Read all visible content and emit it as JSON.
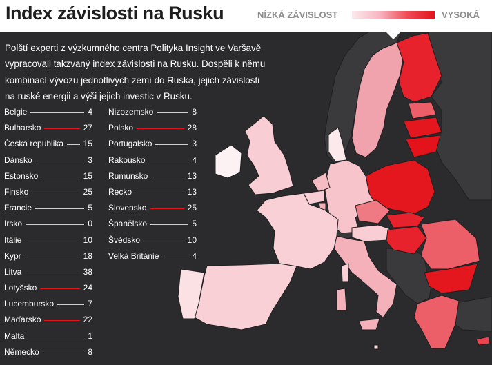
{
  "title": "Index závislosti na Rusku",
  "legend": {
    "low_label": "NÍZKÁ ZÁVISLOST",
    "high_label": "VYSOKÁ",
    "colors": [
      "#fbe9ec",
      "#f7b6c0",
      "#ee4b57",
      "#e3121b"
    ]
  },
  "intro_lines": [
    "Polští experti z výzkumného centra Polityka Insight ve Varšavě",
    "vypracovali takzvaný index závislosti na Rusku. Dospěli k němu",
    "kombinací vývozu jednotlivých zemí do Ruska, jejich závislosti",
    "na ruské energii a výši jejich investic v Rusku."
  ],
  "column1": [
    {
      "name": "Belgie",
      "value": "4"
    },
    {
      "name": "Bulharsko",
      "value": "27"
    },
    {
      "name": "Česká republika",
      "value": "15"
    },
    {
      "name": "Dánsko",
      "value": "3"
    },
    {
      "name": "Estonsko",
      "value": "15"
    },
    {
      "name": "Finsko",
      "value": "25"
    },
    {
      "name": "Francie",
      "value": "5"
    },
    {
      "name": "Irsko",
      "value": "0"
    },
    {
      "name": "Itálie",
      "value": "10"
    },
    {
      "name": "Kypr",
      "value": "18"
    },
    {
      "name": "Litva",
      "value": "38"
    },
    {
      "name": "Lotyšsko",
      "value": "24"
    },
    {
      "name": "Lucembursko",
      "value": "7"
    },
    {
      "name": "Maďarsko",
      "value": "22"
    },
    {
      "name": "Malta",
      "value": "1"
    },
    {
      "name": "Německo",
      "value": "8"
    }
  ],
  "column2": [
    {
      "name": "Nizozemsko",
      "value": "8"
    },
    {
      "name": "Polsko",
      "value": "28"
    },
    {
      "name": "Portugalsko",
      "value": "3"
    },
    {
      "name": "Rakousko",
      "value": "4"
    },
    {
      "name": "Rumunsko",
      "value": "13"
    },
    {
      "name": "Řecko",
      "value": "13"
    },
    {
      "name": "Slovensko",
      "value": "25"
    },
    {
      "name": "Španělsko",
      "value": "5"
    },
    {
      "name": "Švédsko",
      "value": "10"
    },
    {
      "name": "Velká Británie",
      "value": "4"
    }
  ],
  "colors": {
    "background": "#2b2b2d",
    "non_eu_land": "#3a3a3c",
    "border": "#1f1f21"
  }
}
